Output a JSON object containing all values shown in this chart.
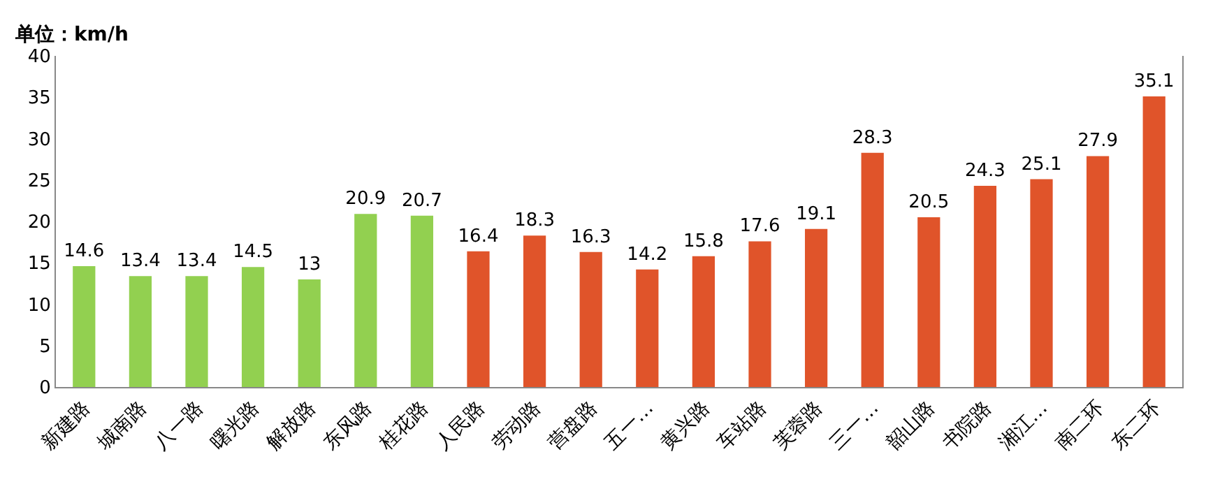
{
  "chart_data": {
    "type": "bar",
    "ylabel": "单位：km/h",
    "categories": [
      "新建路",
      "城南路",
      "八一路",
      "曙光路",
      "解放路",
      "东风路",
      "桂花路",
      "人民路",
      "劳动路",
      "营盘路",
      "五一…",
      "黄兴路",
      "车站路",
      "芙蓉路",
      "三一…",
      "韶山路",
      "书院路",
      "湘江…",
      "南二环",
      "东二环"
    ],
    "values": [
      14.6,
      13.4,
      13.4,
      14.5,
      13,
      20.9,
      20.7,
      16.4,
      18.3,
      16.3,
      14.2,
      15.8,
      17.6,
      19.1,
      28.3,
      20.5,
      24.3,
      25.1,
      27.9,
      35.1
    ],
    "colors": [
      "#92d050",
      "#92d050",
      "#92d050",
      "#92d050",
      "#92d050",
      "#92d050",
      "#92d050",
      "#e0542a",
      "#e0542a",
      "#e0542a",
      "#e0542a",
      "#e0542a",
      "#e0542a",
      "#e0542a",
      "#e0542a",
      "#e0542a",
      "#e0542a",
      "#e0542a",
      "#e0542a",
      "#e0542a"
    ],
    "ylim": [
      0,
      40
    ],
    "yticks": [
      0,
      5,
      10,
      15,
      20,
      25,
      30,
      35,
      40
    ],
    "data_labels": true,
    "grid": false
  }
}
